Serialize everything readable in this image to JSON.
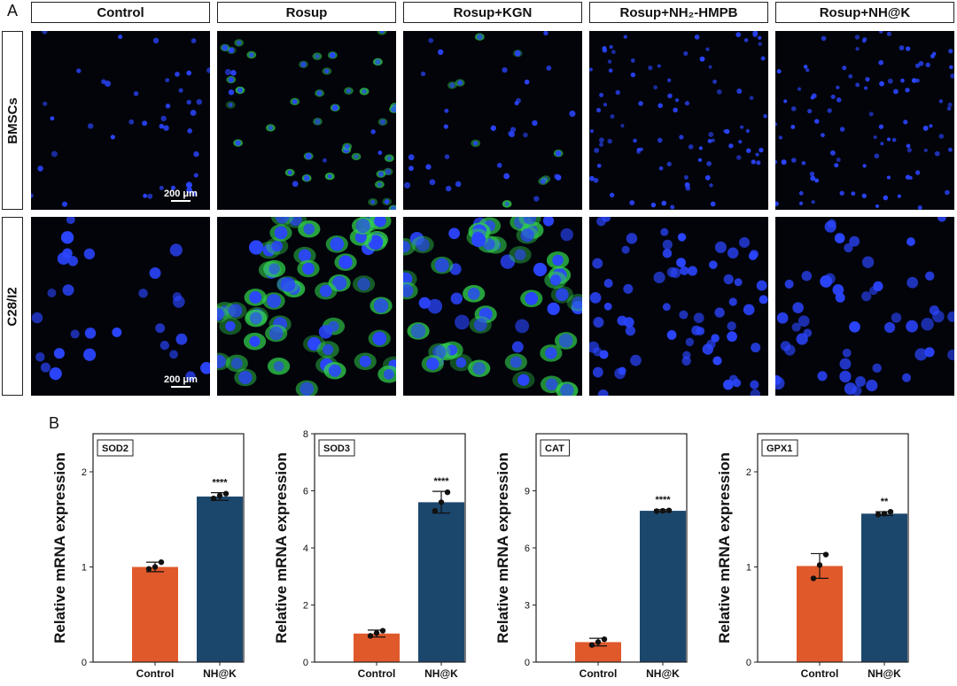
{
  "panel_a_label": "A",
  "panel_b_label": "B",
  "columns": [
    "Control",
    "Rosup",
    "Rosup+KGN",
    "Rosup+NH₂-HMPB",
    "Rosup+NH@K"
  ],
  "rows": [
    "BMSCs",
    "C28/I2"
  ],
  "scale_bar_label": "200 μm",
  "colors": {
    "control": "#e0592b",
    "treated": "#1c476d",
    "nucleus": "#2b45ff",
    "ros": "#32d24e"
  },
  "chart_data": [
    {
      "type": "bar",
      "title": "SOD2",
      "ylabel": "Relative mRNA expression",
      "categories": [
        "Control",
        "NH@K"
      ],
      "values": [
        1.0,
        1.74
      ],
      "error": [
        0.05,
        0.04
      ],
      "points": [
        [
          0.98,
          1.0,
          1.05
        ],
        [
          1.72,
          1.75,
          1.77
        ]
      ],
      "ylim": [
        0,
        2.4
      ],
      "yticks": [
        0,
        1,
        2
      ],
      "significance": "****"
    },
    {
      "type": "bar",
      "title": "SOD3",
      "ylabel": "Relative mRNA expression",
      "categories": [
        "Control",
        "NH@K"
      ],
      "values": [
        1.0,
        5.6
      ],
      "error": [
        0.12,
        0.38
      ],
      "points": [
        [
          0.92,
          1.02,
          1.1
        ],
        [
          5.3,
          5.6,
          5.95
        ]
      ],
      "ylim": [
        0,
        8
      ],
      "yticks": [
        0,
        2,
        4,
        6,
        8
      ],
      "significance": "****"
    },
    {
      "type": "bar",
      "title": "CAT",
      "ylabel": "Relative mRNA expression",
      "categories": [
        "Control",
        "NH@K"
      ],
      "values": [
        1.05,
        7.95
      ],
      "error": [
        0.2,
        0.06
      ],
      "points": [
        [
          0.9,
          1.05,
          1.2
        ],
        [
          7.93,
          7.95,
          7.97
        ]
      ],
      "ylim": [
        0,
        12
      ],
      "yticks": [
        0,
        3,
        6,
        9
      ],
      "significance": "****"
    },
    {
      "type": "bar",
      "title": "GPX1",
      "ylabel": "Relative mRNA expression",
      "categories": [
        "Control",
        "NH@K"
      ],
      "values": [
        1.01,
        1.56
      ],
      "error": [
        0.13,
        0.02
      ],
      "points": [
        [
          0.88,
          1.02,
          1.13
        ],
        [
          1.55,
          1.56,
          1.58
        ]
      ],
      "ylim": [
        0,
        2.4
      ],
      "yticks": [
        0,
        1,
        2
      ],
      "significance": "**"
    }
  ]
}
